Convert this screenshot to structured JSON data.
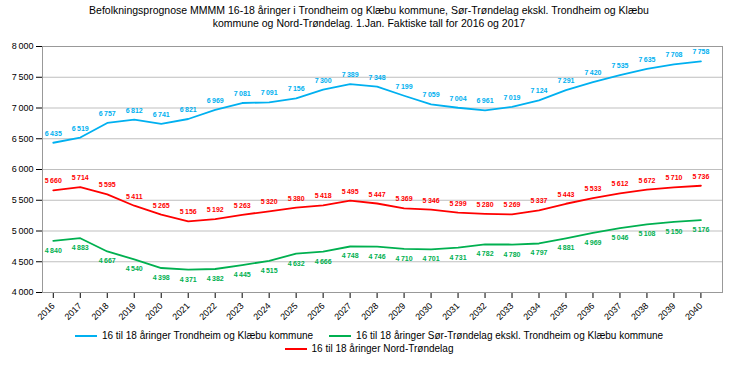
{
  "chart_data": {
    "type": "line",
    "title": "Befolkningsprognose MMMM 16-18 åringer i Trondheim og Klæbu kommune, Sør-Trøndelag ekskl. Trondheim og Klæbu\nkommune og  Nord-Trøndelag.  1.Jan. Faktiske tall for 2016 og 2017",
    "x": [
      2016,
      2017,
      2018,
      2019,
      2020,
      2021,
      2022,
      2023,
      2024,
      2025,
      2026,
      2027,
      2028,
      2029,
      2030,
      2031,
      2032,
      2033,
      2034,
      2035,
      2036,
      2037,
      2038,
      2039,
      2040
    ],
    "series": [
      {
        "name": "16 til 18 åringer Trondheim og Klæbu kommune",
        "color": "#00B0F0",
        "values": [
          6435,
          6519,
          6757,
          6812,
          6741,
          6821,
          6969,
          7081,
          7091,
          7156,
          7300,
          7389,
          7348,
          7199,
          7059,
          7004,
          6961,
          7019,
          7124,
          7291,
          7420,
          7535,
          7635,
          7708,
          7758
        ],
        "value_labels": [
          "6 435",
          "6 519",
          "6 757",
          "6 812",
          "6 741",
          "6 821",
          "6 969",
          "7 081",
          "7 091",
          "7 156",
          "7 300",
          "7 389",
          "7 348",
          "7 199",
          "7 059",
          "7 004",
          "6 961",
          "7 019",
          "7 124",
          "7 291",
          "7 420",
          "7 535",
          "7 635",
          "7 708",
          "7 758"
        ]
      },
      {
        "name": "16 til 18 åringer Sør-Trøndelag ekskl. Trondheim og Klæbu kommune",
        "color": "#00B050",
        "values": [
          4840,
          4883,
          4667,
          4540,
          4398,
          4371,
          4382,
          4445,
          4515,
          4632,
          4666,
          4748,
          4746,
          4710,
          4701,
          4731,
          4782,
          4780,
          4797,
          4881,
          4969,
          5046,
          5108,
          5150,
          5176
        ],
        "value_labels": [
          "4 840",
          "4 883",
          "4 667",
          "4 540",
          "4 398",
          "4 371",
          "4 382",
          "4 445",
          "4 515",
          "4 632",
          "4 666",
          "4 748",
          "4 746",
          "4 710",
          "4 701",
          "4 731",
          "4 782",
          "4 780",
          "4 797",
          "4 881",
          "4 969",
          "5 046",
          "5 108",
          "5 150",
          "5 176"
        ]
      },
      {
        "name": "16 til 18 åringer Nord-Trøndelag",
        "color": "#FF0000",
        "values": [
          5660,
          5714,
          5595,
          5411,
          5265,
          5156,
          5192,
          5263,
          5320,
          5380,
          5418,
          5495,
          5447,
          5369,
          5346,
          5299,
          5280,
          5269,
          5337,
          5443,
          5533,
          5612,
          5672,
          5710,
          5736
        ],
        "value_labels": [
          "5 660",
          "5 714",
          "5 595",
          "5 411",
          "5 265",
          "5 156",
          "5 192",
          "5 263",
          "5 320",
          "5 380",
          "5 418",
          "5 495",
          "5 447",
          "5 369",
          "5 346",
          "5 299",
          "5 280",
          "5 269",
          "5 337",
          "5 443",
          "5 533",
          "5 612",
          "5 672",
          "5 710",
          "5 736"
        ]
      }
    ],
    "xlim": [
      2015.6,
      2040.8
    ],
    "xticks": [
      2016,
      2017,
      2018,
      2019,
      2020,
      2021,
      2022,
      2023,
      2024,
      2025,
      2026,
      2027,
      2028,
      2029,
      2030,
      2031,
      2032,
      2033,
      2034,
      2035,
      2036,
      2037,
      2038,
      2039,
      2040
    ],
    "ylim": [
      4000,
      8000
    ],
    "yticks": [
      {
        "value": 4000,
        "label": "4 000"
      },
      {
        "value": 4500,
        "label": "4 500"
      },
      {
        "value": 5000,
        "label": "5 000"
      },
      {
        "value": 5500,
        "label": "5 500"
      },
      {
        "value": 6000,
        "label": "6 000"
      },
      {
        "value": 6500,
        "label": "6 500"
      },
      {
        "value": 7000,
        "label": "7 000"
      },
      {
        "value": 7500,
        "label": "7 500"
      },
      {
        "value": 8000,
        "label": "8 000"
      }
    ],
    "grid": "y",
    "legend": "bottom",
    "data_labels": true
  }
}
